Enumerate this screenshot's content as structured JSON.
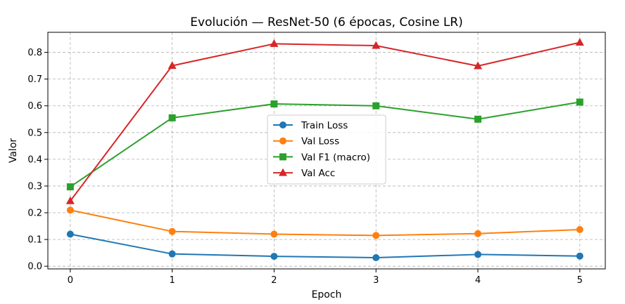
{
  "chart_data": {
    "type": "line",
    "title": "Evolución — ResNet-50 (6 épocas, Cosine LR)",
    "xlabel": "Epoch",
    "ylabel": "Valor",
    "x": [
      0,
      1,
      2,
      3,
      4,
      5
    ],
    "xticks": [
      "0",
      "1",
      "2",
      "3",
      "4",
      "5"
    ],
    "yticks": [
      "0.0",
      "0.1",
      "0.2",
      "0.3",
      "0.4",
      "0.5",
      "0.6",
      "0.7",
      "0.8"
    ],
    "xlim": [
      -0.22,
      5.25
    ],
    "ylim": [
      -0.01,
      0.875
    ],
    "grid": true,
    "legend_position": "center",
    "series": [
      {
        "name": "Train Loss",
        "color": "#1f77b4",
        "marker": "circle",
        "values": [
          0.12,
          0.046,
          0.037,
          0.032,
          0.044,
          0.038
        ]
      },
      {
        "name": "Val Loss",
        "color": "#ff7f0e",
        "marker": "circle",
        "values": [
          0.21,
          0.13,
          0.12,
          0.115,
          0.122,
          0.137
        ]
      },
      {
        "name": "Val F1 (macro)",
        "color": "#2ca02c",
        "marker": "square",
        "values": [
          0.297,
          0.555,
          0.607,
          0.6,
          0.55,
          0.614
        ]
      },
      {
        "name": "Val Acc",
        "color": "#d62728",
        "marker": "triangle",
        "values": [
          0.244,
          0.75,
          0.832,
          0.825,
          0.749,
          0.837
        ]
      }
    ]
  }
}
